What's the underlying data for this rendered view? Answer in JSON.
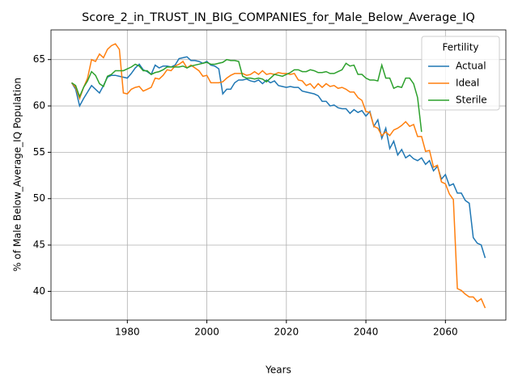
{
  "chart_data": {
    "type": "line",
    "title": "Score_2_in_TRUST_IN_BIG_COMPANIES_for_Male_Below_Average_IQ",
    "xlabel": "Years",
    "ylabel": "% of Male Below_Average_IQ Population",
    "legend_title": "Fertility",
    "legend": "upper right",
    "grid": true,
    "x": [
      1966,
      1967,
      1968,
      1969,
      1970,
      1971,
      1972,
      1973,
      1974,
      1975,
      1976,
      1977,
      1978,
      1979,
      1980,
      1981,
      1982,
      1983,
      1984,
      1985,
      1986,
      1987,
      1988,
      1989,
      1990,
      1991,
      1992,
      1993,
      1994,
      1995,
      1996,
      1997,
      1998,
      1999,
      2000,
      2001,
      2002,
      2003,
      2004,
      2005,
      2006,
      2007,
      2008,
      2009,
      2010,
      2011,
      2012,
      2013,
      2014,
      2015,
      2016,
      2017,
      2018,
      2019,
      2020,
      2021,
      2022,
      2023,
      2024,
      2025,
      2026,
      2027,
      2028,
      2029,
      2030,
      2031,
      2032,
      2033,
      2034,
      2035,
      2036,
      2037,
      2038,
      2039,
      2040,
      2041,
      2042,
      2043,
      2044,
      2045,
      2046,
      2047,
      2048,
      2049,
      2050,
      2051,
      2052,
      2053,
      2054,
      2055,
      2056,
      2057,
      2058,
      2059,
      2060,
      2061,
      2062,
      2063,
      2064,
      2065,
      2066,
      2067,
      2068,
      2069,
      2070
    ],
    "series": [
      {
        "name": "Actual",
        "color": "#1f77b4",
        "values": [
          62.5,
          61.8,
          60.0,
          60.8,
          61.5,
          62.2,
          61.8,
          61.4,
          62.2,
          63.1,
          63.3,
          63.3,
          63.2,
          63.1,
          63.0,
          63.5,
          64.1,
          64.5,
          63.9,
          63.7,
          63.4,
          64.4,
          64.1,
          64.3,
          64.3,
          64.2,
          64.4,
          65.1,
          65.2,
          65.3,
          64.9,
          64.9,
          64.8,
          64.6,
          64.8,
          64.4,
          64.3,
          64.0,
          61.3,
          61.8,
          61.8,
          62.5,
          62.8,
          62.8,
          62.9,
          62.7,
          62.6,
          62.8,
          62.4,
          62.8,
          62.5,
          62.7,
          62.2,
          62.1,
          62.0,
          62.1,
          62.0,
          62.0,
          61.6,
          61.5,
          61.4,
          61.3,
          61.1,
          60.5,
          60.5,
          60.0,
          60.1,
          59.8,
          59.7,
          59.7,
          59.2,
          59.6,
          59.3,
          59.5,
          58.9,
          59.4,
          57.8,
          58.5,
          56.5,
          57.6,
          55.4,
          56.2,
          54.7,
          55.3,
          54.4,
          54.7,
          54.3,
          54.1,
          54.4,
          53.7,
          54.1,
          53.0,
          53.5,
          52.1,
          52.6,
          51.4,
          51.6,
          50.6,
          50.6,
          49.8,
          49.5,
          45.8,
          45.2,
          45.0,
          43.6
        ]
      },
      {
        "name": "Ideal",
        "color": "#ff7f0e",
        "values": [
          62.5,
          62.0,
          60.8,
          62.0,
          63.0,
          65.0,
          64.8,
          65.6,
          65.2,
          66.1,
          66.5,
          66.7,
          66.1,
          61.4,
          61.3,
          61.8,
          62.0,
          62.1,
          61.6,
          61.8,
          62.0,
          63.0,
          62.9,
          63.3,
          63.9,
          63.8,
          64.3,
          64.5,
          64.8,
          64.1,
          64.4,
          64.1,
          63.8,
          63.2,
          63.3,
          62.5,
          62.5,
          62.5,
          62.6,
          63.0,
          63.3,
          63.5,
          63.5,
          63.5,
          63.3,
          63.4,
          63.7,
          63.4,
          63.8,
          63.4,
          63.5,
          63.4,
          63.6,
          63.5,
          63.5,
          63.4,
          63.5,
          62.8,
          62.7,
          62.2,
          62.4,
          61.9,
          62.4,
          62.0,
          62.4,
          62.1,
          62.2,
          61.9,
          62.0,
          61.8,
          61.5,
          61.5,
          60.9,
          60.6,
          59.4,
          59.3,
          57.8,
          57.6,
          56.8,
          57.2,
          56.8,
          57.4,
          57.6,
          57.9,
          58.3,
          57.8,
          58.0,
          56.7,
          56.7,
          55.1,
          55.2,
          53.4,
          53.6,
          51.8,
          51.6,
          50.5,
          49.9,
          40.3,
          40.1,
          39.7,
          39.4,
          39.4,
          38.9,
          39.2,
          38.2
        ]
      },
      {
        "name": "Sterile",
        "color": "#2ca02c",
        "values": [
          62.5,
          62.2,
          61.0,
          62.0,
          62.7,
          63.7,
          63.3,
          62.4,
          62.1,
          63.2,
          63.4,
          63.8,
          63.8,
          63.8,
          64.0,
          64.2,
          64.5,
          64.3,
          63.8,
          63.8,
          63.4,
          63.6,
          63.7,
          63.9,
          64.2,
          64.2,
          64.2,
          64.2,
          64.3,
          64.1,
          64.3,
          64.4,
          64.5,
          64.6,
          64.7,
          64.5,
          64.5,
          64.6,
          64.7,
          65.0,
          64.9,
          64.9,
          64.8,
          63.2,
          63.0,
          63.0,
          62.9,
          63.0,
          62.9,
          62.6,
          63.0,
          63.4,
          63.3,
          63.2,
          63.4,
          63.6,
          63.9,
          63.9,
          63.7,
          63.7,
          63.9,
          63.8,
          63.6,
          63.6,
          63.7,
          63.5,
          63.5,
          63.7,
          63.9,
          64.6,
          64.3,
          64.4,
          63.4,
          63.4,
          63.0,
          62.8,
          62.8,
          62.7,
          64.4,
          63.0,
          63.0,
          61.9,
          62.1,
          62.0,
          63.0,
          63.0,
          62.4,
          60.9,
          57.2,
          null,
          null,
          null,
          null,
          null,
          null,
          null,
          null,
          null,
          null,
          null,
          null,
          null,
          null,
          null,
          null
        ]
      }
    ],
    "xlim": [
      1960.8,
      2075.2
    ],
    "xticks": [
      1980,
      2000,
      2020,
      2040,
      2060
    ],
    "ylim": [
      36.9,
      68.2
    ],
    "yticks": [
      40,
      45,
      50,
      55,
      60,
      65
    ]
  }
}
